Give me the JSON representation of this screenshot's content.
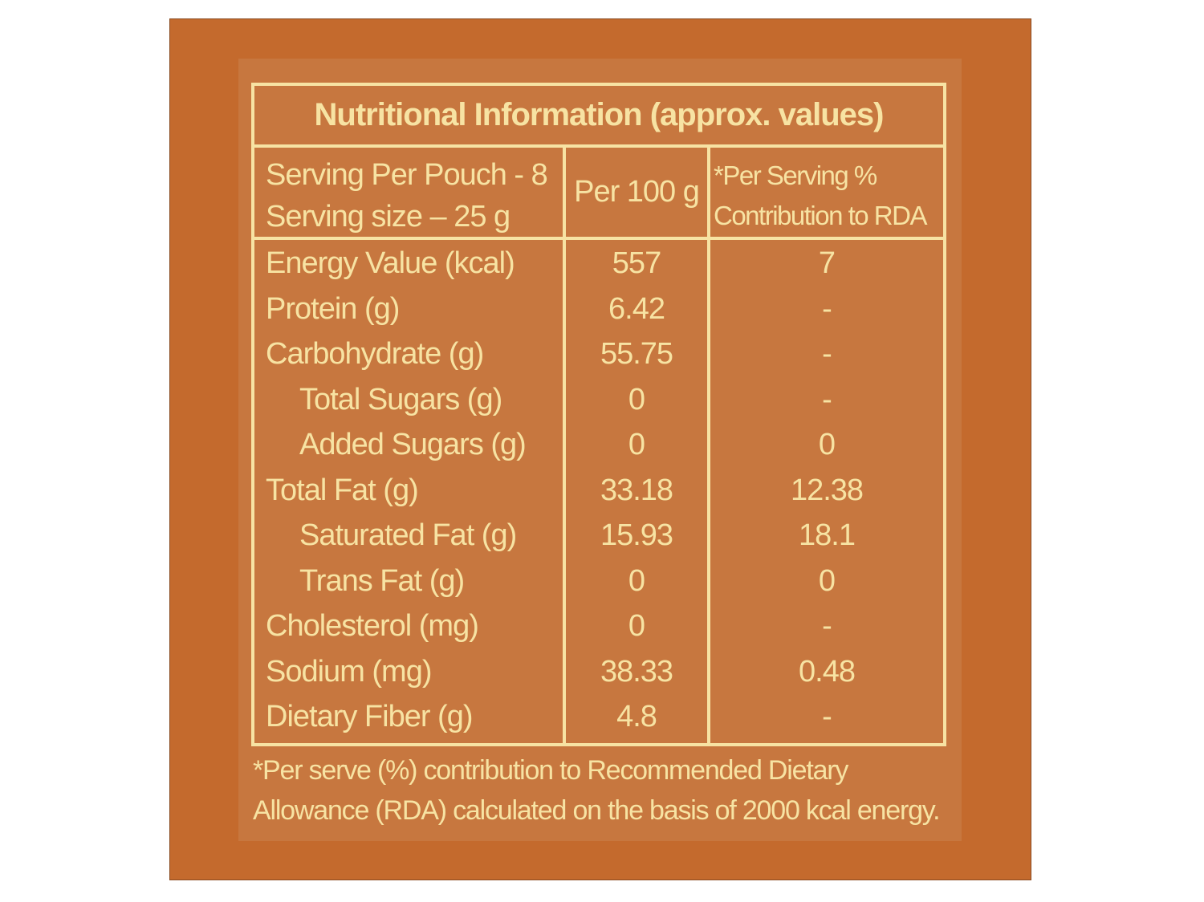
{
  "title": "Nutritional Information (approx. values)",
  "header": {
    "serving_per_pouch": "Serving Per Pouch - 8",
    "serving_size": "Serving size – 25 g",
    "per_100g": "Per 100 g",
    "per_serving_line1": "*Per Serving %",
    "per_serving_line2": "Contribution to RDA"
  },
  "rows": [
    {
      "name": "Energy Value (kcal)",
      "per100": "557",
      "rda": "7"
    },
    {
      "name": "Protein (g)",
      "per100": "6.42",
      "rda": "-"
    },
    {
      "name": "Carbohydrate (g)",
      "per100": "55.75",
      "rda": "-"
    },
    {
      "name": "Total Sugars (g)",
      "per100": "0",
      "rda": "-"
    },
    {
      "name": "Added Sugars (g)",
      "per100": "0",
      "rda": "0"
    },
    {
      "name": "Total Fat (g)",
      "per100": "33.18",
      "rda": "12.38"
    },
    {
      "name": "Saturated Fat (g)",
      "per100": "15.93",
      "rda": "18.1"
    },
    {
      "name": "Trans Fat (g)",
      "per100": "0",
      "rda": "0"
    },
    {
      "name": "Cholesterol (mg)",
      "per100": "0",
      "rda": "-"
    },
    {
      "name": "Sodium (mg)",
      "per100": "38.33",
      "rda": "0.48"
    },
    {
      "name": "Dietary Fiber (g)",
      "per100": "4.8",
      "rda": "-"
    }
  ],
  "footnote": {
    "line1": "*Per serve (%) contribution to Recommended Dietary",
    "line2": "Allowance (RDA) calculated on the basis of 2000 kcal energy."
  },
  "colors": {
    "panel": "#c46a2d",
    "card": "#c7773f",
    "text": "#f7e3a3"
  }
}
